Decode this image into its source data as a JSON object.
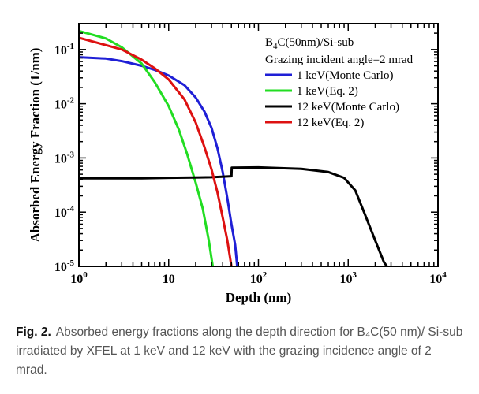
{
  "chart_data": {
    "type": "line",
    "xlabel": "Depth (nm)",
    "ylabel": "Absorbed Energy Fraction (1/nm)",
    "x_scale": "log",
    "y_scale": "log",
    "xlim": [
      1,
      10000
    ],
    "ylim": [
      1e-05,
      0.3
    ],
    "x_ticks": [
      {
        "value": 1,
        "base": "10",
        "exp": "0"
      },
      {
        "value": 10,
        "base": "10",
        "exp": ""
      },
      {
        "value": 100,
        "base": "10",
        "exp": "2"
      },
      {
        "value": 1000,
        "base": "10",
        "exp": "3"
      },
      {
        "value": 10000,
        "base": "10",
        "exp": "4"
      }
    ],
    "y_ticks": [
      {
        "value": 1e-05,
        "base": "10",
        "exp": "-5"
      },
      {
        "value": 0.0001,
        "base": "10",
        "exp": "-4"
      },
      {
        "value": 0.001,
        "base": "10",
        "exp": "-3"
      },
      {
        "value": 0.01,
        "base": "10",
        "exp": "-2"
      },
      {
        "value": 0.1,
        "base": "10",
        "exp": "-1"
      }
    ],
    "annotation": {
      "sample_prefix": "B",
      "sample_sub": "4",
      "sample_suffix": "C(50nm)/Si-sub",
      "angle": "Grazing incident angle=2 mrad"
    },
    "grid": false,
    "legend_position": "top-right",
    "series": [
      {
        "name": "1 keV(Monte Carlo)",
        "color": "#1f1fd6",
        "points": [
          [
            1,
            0.072
          ],
          [
            2,
            0.068
          ],
          [
            3,
            0.061
          ],
          [
            5,
            0.05
          ],
          [
            7,
            0.042
          ],
          [
            10,
            0.033
          ],
          [
            15,
            0.022
          ],
          [
            20,
            0.013
          ],
          [
            25,
            0.0072
          ],
          [
            30,
            0.0036
          ],
          [
            35,
            0.0015
          ],
          [
            40,
            0.00055
          ],
          [
            45,
            0.00018
          ],
          [
            50,
            6e-05
          ],
          [
            55,
            2.5e-05
          ],
          [
            58,
            1e-05
          ]
        ]
      },
      {
        "name": "1 keV(Eq. 2)",
        "color": "#22dd22",
        "points": [
          [
            1,
            0.22
          ],
          [
            2,
            0.16
          ],
          [
            3,
            0.11
          ],
          [
            5,
            0.055
          ],
          [
            7,
            0.025
          ],
          [
            10,
            0.009
          ],
          [
            13,
            0.0033
          ],
          [
            16,
            0.0012
          ],
          [
            20,
            0.00035
          ],
          [
            24,
            0.000115
          ],
          [
            28,
            3e-05
          ],
          [
            31,
            1e-05
          ]
        ]
      },
      {
        "name": "12 keV(Monte Carlo)",
        "color": "#000000",
        "points": [
          [
            1,
            0.00042
          ],
          [
            5,
            0.00042
          ],
          [
            10,
            0.00043
          ],
          [
            30,
            0.00044
          ],
          [
            50,
            0.00046
          ],
          [
            50.5,
            0.00066
          ],
          [
            100,
            0.00067
          ],
          [
            300,
            0.00063
          ],
          [
            600,
            0.00055
          ],
          [
            900,
            0.00043
          ],
          [
            1200,
            0.00025
          ],
          [
            1500,
            0.0001
          ],
          [
            2000,
            3e-05
          ],
          [
            2500,
            1.2e-05
          ],
          [
            2700,
            1e-05
          ]
        ]
      },
      {
        "name": "12 keV(Eq. 2)",
        "color": "#dd1111",
        "points": [
          [
            1,
            0.165
          ],
          [
            3,
            0.1
          ],
          [
            5,
            0.065
          ],
          [
            7,
            0.045
          ],
          [
            10,
            0.028
          ],
          [
            15,
            0.012
          ],
          [
            20,
            0.0045
          ],
          [
            25,
            0.0016
          ],
          [
            30,
            0.00062
          ],
          [
            35,
            0.00023
          ],
          [
            40,
            8e-05
          ],
          [
            45,
            3e-05
          ],
          [
            50,
            1e-05
          ]
        ]
      }
    ]
  },
  "caption": {
    "label": "Fig. 2.",
    "text": "Absorbed energy fractions along the depth direction for B₄C(50 nm)/ Si-sub irradiated by XFEL at 1 keV and 12 keV with the grazing incidence angle of 2 mrad."
  }
}
